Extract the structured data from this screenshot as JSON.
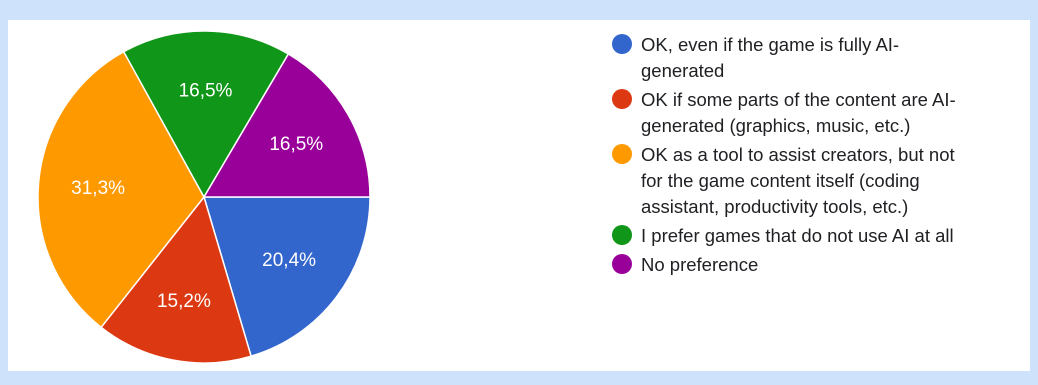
{
  "chart_data": {
    "type": "pie",
    "slices": [
      {
        "label": "OK, even if the game is fully AI-\ngenerated",
        "value": 20.4,
        "display": "20,4%",
        "color": "#3366cc"
      },
      {
        "label": "OK if some parts of the content are AI-\ngenerated (graphics, music, etc.)",
        "value": 15.2,
        "display": "15,2%",
        "color": "#dc3912"
      },
      {
        "label": "OK as a tool to assist creators, but not\nfor the game content itself (coding\nassistant, productivity tools, etc.)",
        "value": 31.3,
        "display": "31,3%",
        "color": "#ff9900"
      },
      {
        "label": "I prefer games that do not use AI at all",
        "value": 16.5,
        "display": "16,5%",
        "color": "#109618"
      },
      {
        "label": "No preference",
        "value": 16.5,
        "display": "16,5%",
        "color": "#990099"
      }
    ],
    "start_angle": "3 o'clock",
    "direction": "clockwise",
    "legend_position": "right"
  }
}
